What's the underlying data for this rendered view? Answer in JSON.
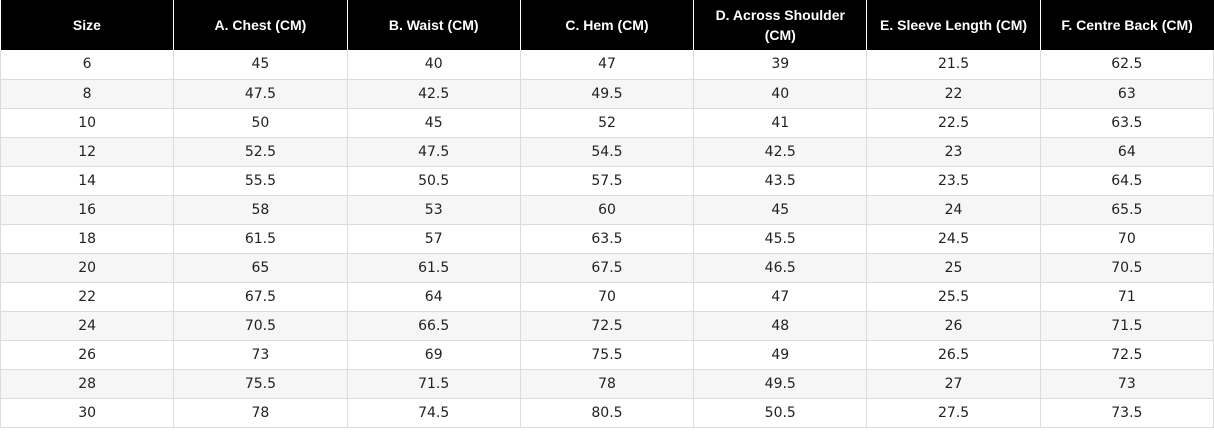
{
  "table": {
    "headers": [
      "Size",
      "A. Chest (CM)",
      "B. Waist (CM)",
      "C. Hem (CM)",
      "D. Across Shoulder (CM)",
      "E. Sleeve Length (CM)",
      "F. Centre Back (CM)"
    ],
    "rows": [
      [
        "6",
        "45",
        "40",
        "47",
        "39",
        "21.5",
        "62.5"
      ],
      [
        "8",
        "47.5",
        "42.5",
        "49.5",
        "40",
        "22",
        "63"
      ],
      [
        "10",
        "50",
        "45",
        "52",
        "41",
        "22.5",
        "63.5"
      ],
      [
        "12",
        "52.5",
        "47.5",
        "54.5",
        "42.5",
        "23",
        "64"
      ],
      [
        "14",
        "55.5",
        "50.5",
        "57.5",
        "43.5",
        "23.5",
        "64.5"
      ],
      [
        "16",
        "58",
        "53",
        "60",
        "45",
        "24",
        "65.5"
      ],
      [
        "18",
        "61.5",
        "57",
        "63.5",
        "45.5",
        "24.5",
        "70"
      ],
      [
        "20",
        "65",
        "61.5",
        "67.5",
        "46.5",
        "25",
        "70.5"
      ],
      [
        "22",
        "67.5",
        "64",
        "70",
        "47",
        "25.5",
        "71"
      ],
      [
        "24",
        "70.5",
        "66.5",
        "72.5",
        "48",
        "26",
        "71.5"
      ],
      [
        "26",
        "73",
        "69",
        "75.5",
        "49",
        "26.5",
        "72.5"
      ],
      [
        "28",
        "75.5",
        "71.5",
        "78",
        "49.5",
        "27",
        "73"
      ],
      [
        "30",
        "78",
        "74.5",
        "80.5",
        "50.5",
        "27.5",
        "73.5"
      ]
    ]
  },
  "colors": {
    "header_background": "#000000",
    "header_text": "#ffffff",
    "stripe_row": "#f6f6f6",
    "border": "#dcdcdc"
  }
}
